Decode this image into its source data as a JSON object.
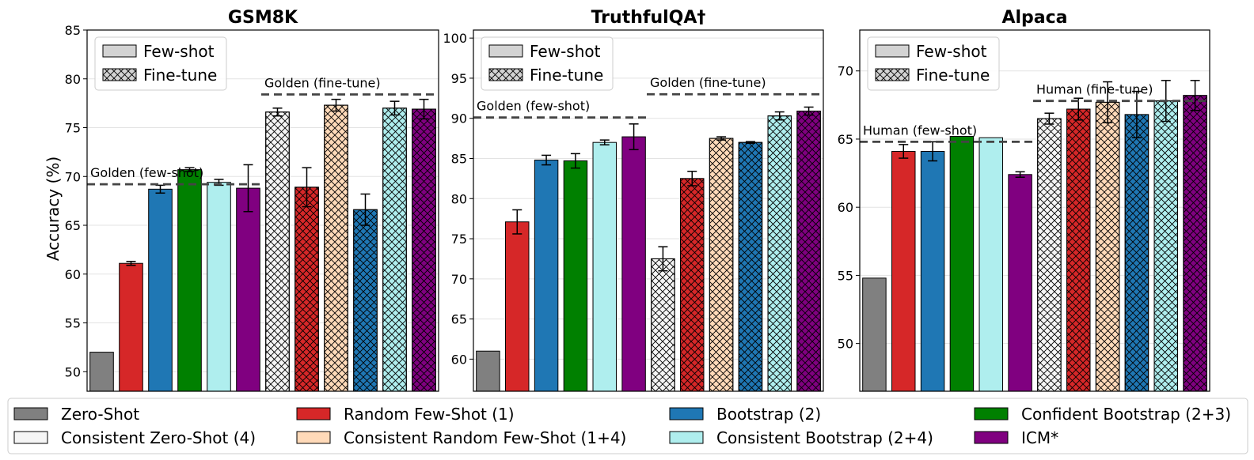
{
  "figure": {
    "ylabel": "Accuracy (%)"
  },
  "chart_data": [
    {
      "type": "bar",
      "title": "GSM8K",
      "ylabel": "Accuracy (%)",
      "ylim": [
        48,
        85
      ],
      "yticks": [
        50,
        55,
        60,
        65,
        70,
        75,
        80,
        85
      ],
      "series": [
        "Zero-Shot",
        "Random Few-Shot (1)",
        "Bootstrap (2)",
        "Confident Bootstrap (2+3)",
        "Consistent Bootstrap (2+4)",
        "ICM*",
        "Consistent Zero-Shot (4)",
        "Random Few-Shot (1)",
        "Consistent Random Few-Shot (1+4)",
        "Bootstrap (2)",
        "Consistent Bootstrap (2+4)",
        "ICM*"
      ],
      "values": [
        52.0,
        61.1,
        68.7,
        70.7,
        69.4,
        68.8,
        76.6,
        68.9,
        77.3,
        66.6,
        77.0,
        76.9
      ],
      "errors": [
        0,
        0.2,
        0.4,
        0.2,
        0.3,
        2.4,
        0.4,
        2.0,
        0.6,
        1.6,
        0.7,
        1.0
      ],
      "hatched": [
        false,
        false,
        false,
        false,
        false,
        false,
        true,
        true,
        true,
        true,
        true,
        true
      ],
      "reference_lines": [
        {
          "label": "Golden (few-shot)",
          "value": 69.2,
          "span": "few-shot"
        },
        {
          "label": "Golden (fine-tune)",
          "value": 78.4,
          "span": "fine-tune"
        }
      ],
      "legend": [
        "Few-shot",
        "Fine-tune"
      ]
    },
    {
      "type": "bar",
      "title": "TruthfulQA†",
      "ylabel": "",
      "ylim": [
        56,
        101
      ],
      "yticks": [
        60,
        65,
        70,
        75,
        80,
        85,
        90,
        95,
        100
      ],
      "series": [
        "Zero-Shot",
        "Random Few-Shot (1)",
        "Bootstrap (2)",
        "Confident Bootstrap (2+3)",
        "Consistent Bootstrap (2+4)",
        "ICM*",
        "Consistent Zero-Shot (4)",
        "Random Few-Shot (1)",
        "Consistent Random Few-Shot (1+4)",
        "Bootstrap (2)",
        "Consistent Bootstrap (2+4)",
        "ICM*"
      ],
      "values": [
        61.0,
        77.1,
        84.8,
        84.7,
        87.0,
        87.7,
        72.5,
        82.5,
        87.5,
        87.0,
        90.3,
        90.9
      ],
      "errors": [
        0,
        1.5,
        0.6,
        0.9,
        0.3,
        1.6,
        1.5,
        0.9,
        0.2,
        0.1,
        0.5,
        0.5
      ],
      "hatched": [
        false,
        false,
        false,
        false,
        false,
        false,
        true,
        true,
        true,
        true,
        true,
        true
      ],
      "reference_lines": [
        {
          "label": "Golden (few-shot)",
          "value": 90.1,
          "span": "few-shot"
        },
        {
          "label": "Golden (fine-tune)",
          "value": 93.0,
          "span": "fine-tune"
        }
      ],
      "legend": [
        "Few-shot",
        "Fine-tune"
      ]
    },
    {
      "type": "bar",
      "title": "Alpaca",
      "ylabel": "",
      "ylim": [
        46.5,
        73
      ],
      "yticks": [
        50,
        55,
        60,
        65,
        70
      ],
      "series": [
        "Zero-Shot",
        "Random Few-Shot (1)",
        "Bootstrap (2)",
        "Confident Bootstrap (2+3)",
        "Consistent Bootstrap (2+4)",
        "ICM*",
        "Consistent Zero-Shot (4)",
        "Random Few-Shot (1)",
        "Consistent Random Few-Shot (1+4)",
        "Bootstrap (2)",
        "Consistent Bootstrap (2+4)",
        "ICM*"
      ],
      "values": [
        54.8,
        64.1,
        64.1,
        65.2,
        65.1,
        62.4,
        66.5,
        67.2,
        67.7,
        66.8,
        67.8,
        68.2
      ],
      "errors": [
        0,
        0.5,
        0.7,
        0,
        0,
        0.2,
        0.4,
        0.8,
        1.5,
        1.7,
        1.5,
        1.1
      ],
      "hatched": [
        false,
        false,
        false,
        false,
        false,
        false,
        true,
        true,
        true,
        true,
        true,
        true
      ],
      "reference_lines": [
        {
          "label": "Human (few-shot)",
          "value": 64.8,
          "span": "few-shot"
        },
        {
          "label": "Human (fine-tune)",
          "value": 67.8,
          "span": "fine-tune"
        }
      ],
      "legend": [
        "Few-shot",
        "Fine-tune"
      ]
    }
  ],
  "method_colors": {
    "Zero-Shot": "#808080",
    "Random Few-Shot (1)": "#d62728",
    "Bootstrap (2)": "#1f77b4",
    "Confident Bootstrap (2+3)": "#008000",
    "Consistent Bootstrap (2+4)": "#afeeee",
    "ICM*": "#800080",
    "Consistent Zero-Shot (4)": "#f5f5f5",
    "Consistent Random Few-Shot (1+4)": "#ffdab9"
  },
  "legend": {
    "rows": [
      [
        "Zero-Shot",
        "Random Few-Shot (1)",
        "Bootstrap (2)",
        "Confident Bootstrap (2+3)"
      ],
      [
        "Consistent Zero-Shot (4)",
        "Consistent Random Few-Shot (1+4)",
        "Consistent Bootstrap (2+4)",
        "ICM*"
      ]
    ]
  }
}
